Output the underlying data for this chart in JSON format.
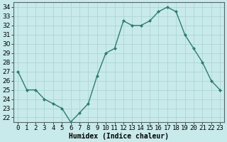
{
  "x": [
    0,
    1,
    2,
    3,
    4,
    5,
    6,
    7,
    8,
    9,
    10,
    11,
    12,
    13,
    14,
    15,
    16,
    17,
    18,
    19,
    20,
    21,
    22,
    23
  ],
  "y": [
    27,
    25,
    25,
    24,
    23.5,
    23,
    21.5,
    22.5,
    23.5,
    26.5,
    29,
    29.5,
    32.5,
    32,
    32,
    32.5,
    33.5,
    34,
    33.5,
    31,
    29.5,
    28,
    26,
    25
  ],
  "line_color": "#2e7d6e",
  "marker_color": "#2e7d6e",
  "bg_color": "#c8eaea",
  "grid_color": "#b0d8d8",
  "xlabel": "Humidex (Indice chaleur)",
  "xlim": [
    -0.5,
    23.5
  ],
  "ylim": [
    21.5,
    34.5
  ],
  "yticks": [
    22,
    23,
    24,
    25,
    26,
    27,
    28,
    29,
    30,
    31,
    32,
    33,
    34
  ],
  "xtick_labels": [
    "0",
    "1",
    "2",
    "3",
    "4",
    "5",
    "6",
    "7",
    "8",
    "9",
    "10",
    "11",
    "12",
    "13",
    "14",
    "15",
    "16",
    "17",
    "18",
    "19",
    "20",
    "21",
    "22",
    "23"
  ],
  "xlabel_fontsize": 7,
  "tick_fontsize": 6.5
}
